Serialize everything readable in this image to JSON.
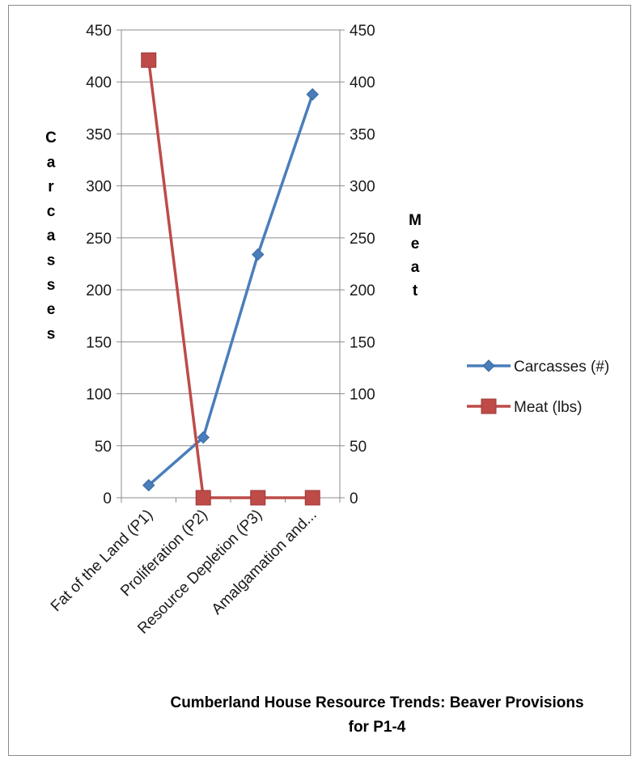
{
  "chart_data": {
    "type": "line",
    "categories": [
      "Fat of the Land (P1)",
      "Proliferation (P2)",
      "Resource Depletion (P3)",
      "Amalgamation and..."
    ],
    "series": [
      {
        "name": "Carcasses (#)",
        "axis": "left",
        "color": "#4a7ebb",
        "marker": "diamond",
        "values": [
          12,
          58,
          234,
          388
        ]
      },
      {
        "name": "Meat (lbs)",
        "axis": "right",
        "color": "#be4b48",
        "marker": "square",
        "values": [
          421,
          0,
          0,
          0
        ]
      }
    ],
    "ylabel": "Carcasses",
    "y2label": "Meat",
    "ylim": [
      0,
      450
    ],
    "y2lim": [
      0,
      450
    ],
    "yticks": [
      "0",
      "50",
      "100",
      "150",
      "200",
      "250",
      "300",
      "350",
      "400",
      "450"
    ],
    "y2ticks": [
      "0",
      "50",
      "100",
      "150",
      "200",
      "250",
      "300",
      "350",
      "400",
      "450"
    ],
    "title_line1": "Cumberland House Resource Trends: Beaver Provisions",
    "title_line2": "for P1-4",
    "grid": true,
    "legend": "right"
  }
}
